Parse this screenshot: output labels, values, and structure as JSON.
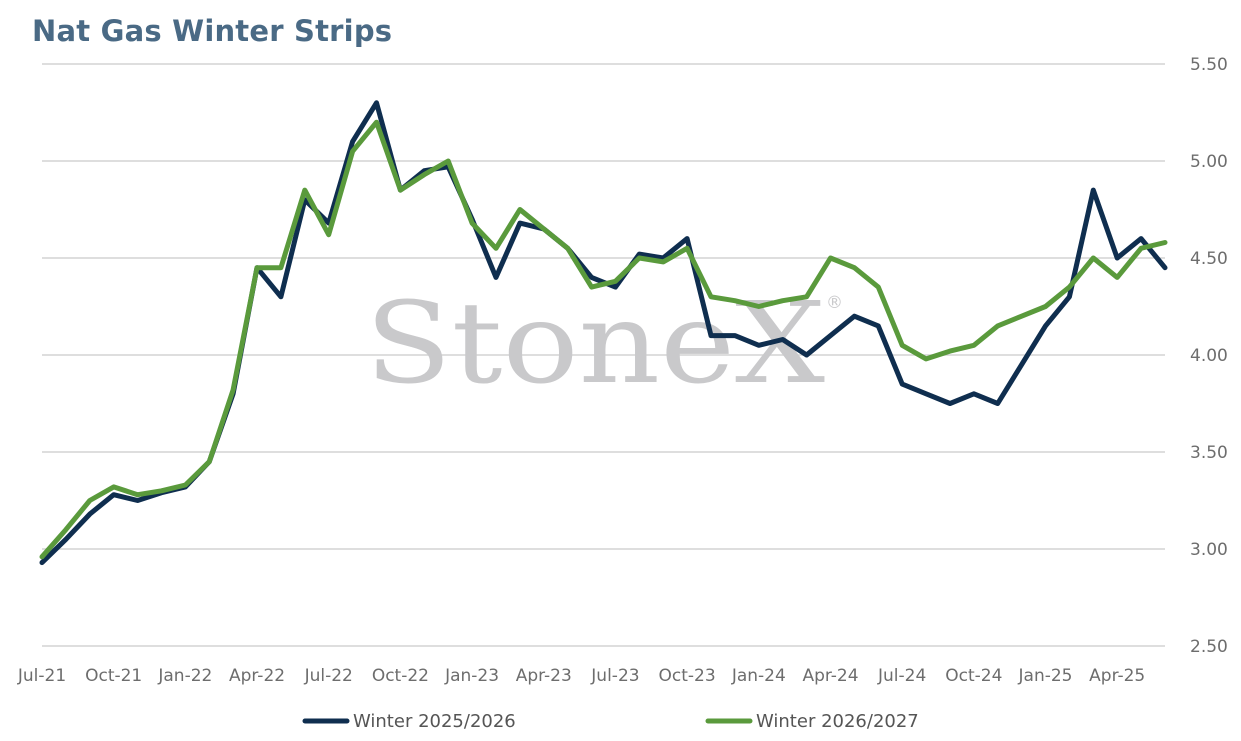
{
  "chart_data": {
    "type": "line",
    "title": "Nat Gas Winter Strips",
    "xlabel": "",
    "ylabel": "",
    "ylim": [
      2.5,
      5.5
    ],
    "y_ticks": [
      "2.50",
      "3.00",
      "3.50",
      "4.00",
      "4.50",
      "5.00",
      "5.50"
    ],
    "x_tick_labels": [
      "Jul-21",
      "Oct-21",
      "Jan-22",
      "Apr-22",
      "Jul-22",
      "Oct-22",
      "Jan-23",
      "Apr-23",
      "Jul-23",
      "Oct-23",
      "Jan-24",
      "Apr-24",
      "Jul-24",
      "Oct-24",
      "Jan-25",
      "Apr-25"
    ],
    "grid": true,
    "legend_position": "bottom",
    "watermark": "StoneX",
    "colors": {
      "Winter 2025/2026": "#0f2e4f",
      "Winter 2026/2027": "#5a9a3c"
    },
    "x": [
      "Jul-21",
      "Aug-21",
      "Sep-21",
      "Oct-21",
      "Nov-21",
      "Dec-21",
      "Jan-22",
      "Feb-22",
      "Mar-22",
      "Apr-22",
      "May-22",
      "Jun-22",
      "Jul-22",
      "Aug-22",
      "Sep-22",
      "Oct-22",
      "Nov-22",
      "Dec-22",
      "Jan-23",
      "Feb-23",
      "Mar-23",
      "Apr-23",
      "May-23",
      "Jun-23",
      "Jul-23",
      "Aug-23",
      "Sep-23",
      "Oct-23",
      "Nov-23",
      "Dec-23",
      "Jan-24",
      "Feb-24",
      "Mar-24",
      "Apr-24",
      "May-24",
      "Jun-24",
      "Jul-24",
      "Aug-24",
      "Sep-24",
      "Oct-24",
      "Nov-24",
      "Dec-24",
      "Jan-25",
      "Feb-25",
      "Mar-25",
      "Apr-25",
      "May-25",
      "Jun-25"
    ],
    "series": [
      {
        "name": "Winter 2025/2026",
        "values": [
          2.93,
          3.05,
          3.18,
          3.28,
          3.25,
          3.29,
          3.32,
          3.45,
          3.8,
          4.45,
          4.3,
          4.8,
          4.68,
          5.1,
          5.3,
          4.85,
          4.95,
          4.97,
          4.7,
          4.4,
          4.68,
          4.65,
          4.55,
          4.4,
          4.35,
          4.52,
          4.5,
          4.6,
          4.1,
          4.1,
          4.05,
          4.08,
          4.0,
          4.1,
          4.2,
          4.15,
          3.85,
          3.8,
          3.75,
          3.8,
          3.75,
          3.95,
          4.15,
          4.3,
          4.85,
          4.5,
          4.6,
          4.45
        ]
      },
      {
        "name": "Winter 2026/2027",
        "values": [
          2.96,
          3.1,
          3.25,
          3.32,
          3.28,
          3.3,
          3.33,
          3.45,
          3.82,
          4.45,
          4.45,
          4.85,
          4.62,
          5.05,
          5.2,
          4.85,
          4.93,
          5.0,
          4.68,
          4.55,
          4.75,
          4.65,
          4.55,
          4.35,
          4.38,
          4.5,
          4.48,
          4.55,
          4.3,
          4.28,
          4.25,
          4.28,
          4.3,
          4.5,
          4.45,
          4.35,
          4.05,
          3.98,
          4.02,
          4.05,
          4.15,
          4.2,
          4.25,
          4.35,
          4.5,
          4.4,
          4.55,
          4.58
        ]
      }
    ]
  }
}
